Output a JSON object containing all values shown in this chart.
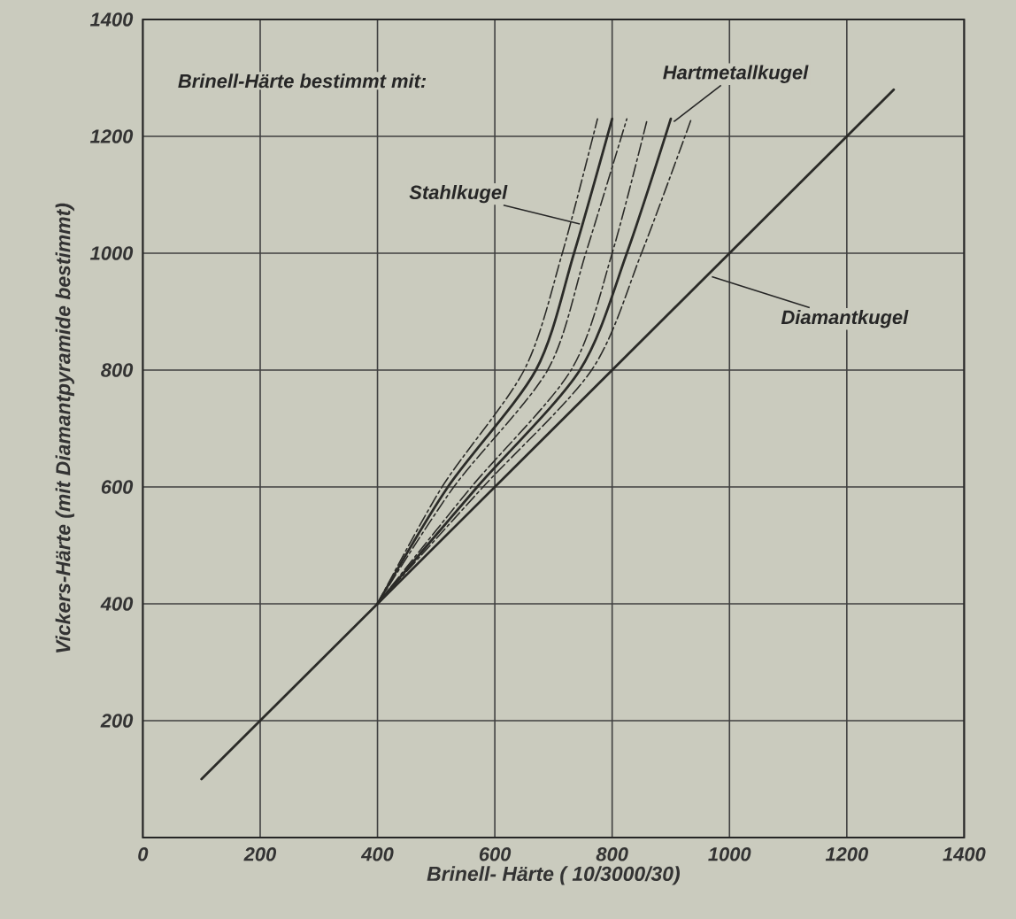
{
  "chart_data": {
    "type": "line",
    "xlabel": "Brinell- Härte ( 10/3000/30)",
    "ylabel": "Vickers-Härte (mit Diamantpyramide bestimmt)",
    "xlim": [
      0,
      1400
    ],
    "ylim": [
      0,
      1400
    ],
    "xticks": [
      0,
      200,
      400,
      600,
      800,
      1000,
      1200,
      1400
    ],
    "yticks": [
      200,
      400,
      600,
      800,
      1000,
      1200,
      1400
    ],
    "grid": true,
    "series": [
      {
        "color": "#2b2b28",
        "line_style": "dashdot",
        "x": [
          400,
          510,
          650,
          715,
          775
        ],
        "values": [
          400,
          600,
          800,
          1000,
          1230
        ]
      },
      {
        "color": "#2b2b28",
        "line_style": "solid",
        "x": [
          400,
          520,
          670,
          735,
          800
        ],
        "values": [
          400,
          600,
          800,
          1000,
          1230
        ]
      },
      {
        "color": "#2b2b28",
        "line_style": "dashdot",
        "x": [
          400,
          530,
          690,
          755,
          825
        ],
        "values": [
          400,
          600,
          800,
          1000,
          1230
        ]
      },
      {
        "color": "#2b2b28",
        "line_style": "dashdot",
        "x": [
          400,
          560,
          730,
          800,
          860
        ],
        "values": [
          400,
          600,
          800,
          1000,
          1230
        ]
      },
      {
        "color": "#2b2b28",
        "line_style": "solid",
        "x": [
          400,
          570,
          745,
          825,
          900
        ],
        "values": [
          400,
          600,
          800,
          1000,
          1230
        ]
      },
      {
        "color": "#2b2b28",
        "line_style": "dashdot",
        "x": [
          400,
          580,
          765,
          850,
          935
        ],
        "values": [
          400,
          600,
          800,
          1000,
          1230
        ]
      },
      {
        "color": "#2b2b28",
        "line_style": "solid",
        "x": [
          100,
          1280
        ],
        "values": [
          100,
          1280
        ]
      }
    ],
    "annotations": [
      "Brinell-Härte bestimmt mit:",
      {
        "text": "Stahlkugel",
        "x": 745,
        "y": 1050
      },
      {
        "text": "Hartmetallkugel",
        "x": 905,
        "y": 1225
      },
      {
        "text": "Diamantkugel",
        "x": 970,
        "y": 960
      }
    ]
  }
}
